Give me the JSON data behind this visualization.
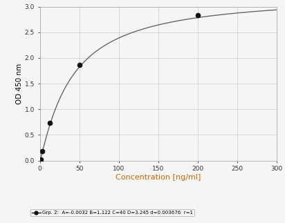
{
  "notable_x": [
    0.78,
    3.125,
    12.5,
    50,
    200
  ],
  "notable_y": [
    0.02,
    0.18,
    0.73,
    1.87,
    2.83
  ],
  "A": -0.0032,
  "B": 1.122,
  "C": 40,
  "D": 3.245,
  "xlim": [
    0,
    300
  ],
  "ylim": [
    0,
    3
  ],
  "xticks": [
    0,
    50,
    100,
    150,
    200,
    250,
    300
  ],
  "yticks": [
    0,
    0.5,
    1,
    1.5,
    2,
    2.5,
    3
  ],
  "xlabel": "Concentration [ng/ml]",
  "ylabel": "OD 450 nm",
  "legend_label": "Grp. 2:  A=-0.0032 B=1.122 C=40 D=3.245 d=0.003676  r=1",
  "line_color": "#666666",
  "marker_color": "#111111",
  "background_color": "#f5f5f5",
  "grid_color": "#cccccc",
  "xlabel_color": "#cc6600",
  "ylabel_color": "#000000",
  "tick_label_color": "#333333",
  "spine_color": "#aaaaaa",
  "tick_label_size": 6.5,
  "xlabel_size": 8,
  "ylabel_size": 7.5
}
